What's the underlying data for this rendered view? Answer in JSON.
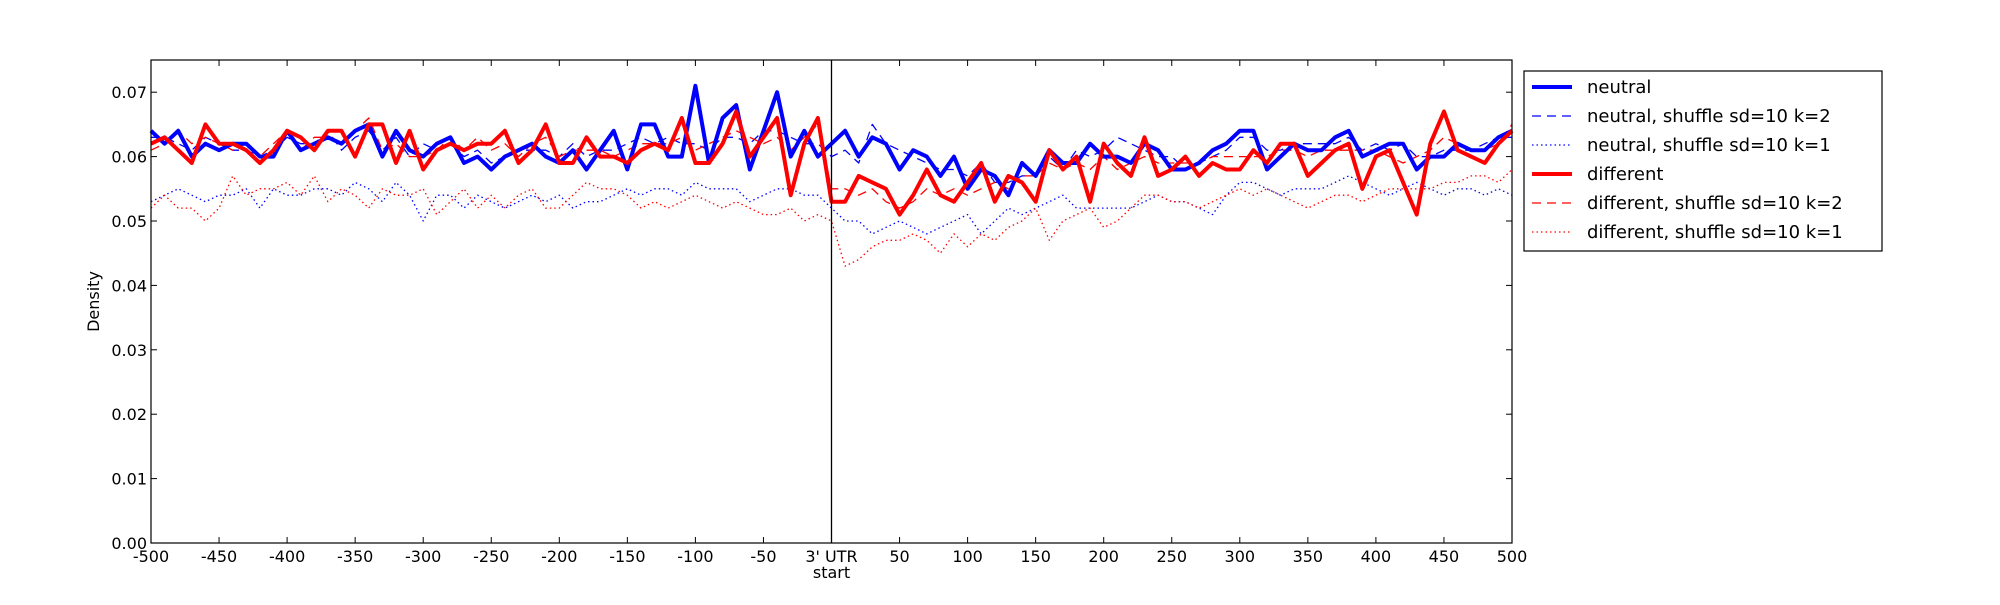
{
  "chart_data": {
    "type": "line",
    "title": "",
    "xlabel": "start",
    "ylabel": "Density",
    "xlim": [
      -500,
      500
    ],
    "ylim": [
      0.0,
      0.075
    ],
    "grid": false,
    "legend_placement": "outside-right-top",
    "x_ticks": [
      -500,
      -450,
      -400,
      -350,
      -300,
      -250,
      -200,
      -150,
      -100,
      -50,
      0,
      50,
      100,
      150,
      200,
      250,
      300,
      350,
      400,
      450,
      500
    ],
    "x_tick_labels": [
      "-500",
      "-450",
      "-400",
      "-350",
      "-300",
      "-250",
      "-200",
      "-150",
      "-100",
      "-50",
      "3' UTR",
      "50",
      "100",
      "150",
      "200",
      "250",
      "300",
      "350",
      "400",
      "450",
      "500"
    ],
    "y_ticks": [
      0.0,
      0.01,
      0.02,
      0.03,
      0.04,
      0.05,
      0.06,
      0.07
    ],
    "y_tick_labels": [
      "0.00",
      "0.01",
      "0.02",
      "0.03",
      "0.04",
      "0.05",
      "0.06",
      "0.07"
    ],
    "vertical_line_x": 0,
    "x": [
      -500,
      -490,
      -480,
      -470,
      -460,
      -450,
      -440,
      -430,
      -420,
      -410,
      -400,
      -390,
      -380,
      -370,
      -360,
      -350,
      -340,
      -330,
      -320,
      -310,
      -300,
      -290,
      -280,
      -270,
      -260,
      -250,
      -240,
      -230,
      -220,
      -210,
      -200,
      -190,
      -180,
      -170,
      -160,
      -150,
      -140,
      -130,
      -120,
      -110,
      -100,
      -90,
      -80,
      -70,
      -60,
      -50,
      -40,
      -30,
      -20,
      -10,
      0,
      10,
      20,
      30,
      40,
      50,
      60,
      70,
      80,
      90,
      100,
      110,
      120,
      130,
      140,
      150,
      160,
      170,
      180,
      190,
      200,
      210,
      220,
      230,
      240,
      250,
      260,
      270,
      280,
      290,
      300,
      310,
      320,
      330,
      340,
      350,
      360,
      370,
      380,
      390,
      400,
      410,
      420,
      430,
      440,
      450,
      460,
      470,
      480,
      490,
      500
    ],
    "series": [
      {
        "name": "neutral",
        "color": "#0000ff",
        "style": "solid",
        "values": [
          0.064,
          0.062,
          0.064,
          0.06,
          0.062,
          0.061,
          0.062,
          0.062,
          0.06,
          0.06,
          0.064,
          0.061,
          0.062,
          0.063,
          0.062,
          0.064,
          0.065,
          0.06,
          0.064,
          0.061,
          0.06,
          0.062,
          0.063,
          0.059,
          0.06,
          0.058,
          0.06,
          0.061,
          0.062,
          0.06,
          0.059,
          0.061,
          0.058,
          0.061,
          0.064,
          0.058,
          0.065,
          0.065,
          0.06,
          0.06,
          0.071,
          0.059,
          0.066,
          0.068,
          0.058,
          0.064,
          0.07,
          0.06,
          0.064,
          0.06,
          0.062,
          0.064,
          0.06,
          0.063,
          0.062,
          0.058,
          0.061,
          0.06,
          0.057,
          0.06,
          0.055,
          0.058,
          0.057,
          0.054,
          0.059,
          0.057,
          0.061,
          0.059,
          0.059,
          0.062,
          0.06,
          0.06,
          0.059,
          0.062,
          0.061,
          0.058,
          0.058,
          0.059,
          0.061,
          0.062,
          0.064,
          0.064,
          0.058,
          0.06,
          0.062,
          0.061,
          0.061,
          0.063,
          0.064,
          0.06,
          0.061,
          0.062,
          0.062,
          0.058,
          0.06,
          0.06,
          0.062,
          0.061,
          0.061,
          0.063,
          0.064
        ]
      },
      {
        "name": "neutral, shuffle sd=10 k=2",
        "color": "#0000ff",
        "style": "dashed",
        "values": [
          0.063,
          0.063,
          0.062,
          0.061,
          0.063,
          0.062,
          0.061,
          0.061,
          0.06,
          0.061,
          0.063,
          0.062,
          0.062,
          0.064,
          0.061,
          0.063,
          0.064,
          0.061,
          0.063,
          0.06,
          0.062,
          0.061,
          0.062,
          0.06,
          0.061,
          0.059,
          0.06,
          0.061,
          0.061,
          0.061,
          0.06,
          0.062,
          0.06,
          0.061,
          0.061,
          0.062,
          0.063,
          0.062,
          0.063,
          0.062,
          0.062,
          0.061,
          0.063,
          0.063,
          0.062,
          0.064,
          0.064,
          0.063,
          0.062,
          0.062,
          0.06,
          0.061,
          0.059,
          0.065,
          0.062,
          0.061,
          0.06,
          0.059,
          0.058,
          0.058,
          0.057,
          0.059,
          0.056,
          0.056,
          0.057,
          0.057,
          0.06,
          0.058,
          0.061,
          0.06,
          0.061,
          0.063,
          0.062,
          0.061,
          0.06,
          0.06,
          0.058,
          0.059,
          0.06,
          0.061,
          0.063,
          0.063,
          0.061,
          0.061,
          0.062,
          0.062,
          0.062,
          0.062,
          0.063,
          0.061,
          0.062,
          0.061,
          0.062,
          0.06,
          0.06,
          0.061,
          0.061,
          0.061,
          0.062,
          0.063,
          0.063
        ]
      },
      {
        "name": "neutral, shuffle sd=10 k=1",
        "color": "#0000ff",
        "style": "dotted",
        "values": [
          0.053,
          0.054,
          0.055,
          0.054,
          0.053,
          0.054,
          0.054,
          0.055,
          0.052,
          0.055,
          0.054,
          0.054,
          0.055,
          0.055,
          0.054,
          0.056,
          0.055,
          0.053,
          0.056,
          0.054,
          0.05,
          0.054,
          0.054,
          0.052,
          0.054,
          0.053,
          0.052,
          0.053,
          0.054,
          0.053,
          0.054,
          0.052,
          0.053,
          0.053,
          0.054,
          0.055,
          0.054,
          0.055,
          0.055,
          0.054,
          0.056,
          0.055,
          0.055,
          0.055,
          0.053,
          0.054,
          0.055,
          0.055,
          0.054,
          0.054,
          0.052,
          0.05,
          0.05,
          0.048,
          0.049,
          0.05,
          0.049,
          0.048,
          0.049,
          0.05,
          0.051,
          0.048,
          0.05,
          0.052,
          0.051,
          0.052,
          0.053,
          0.054,
          0.052,
          0.052,
          0.052,
          0.052,
          0.052,
          0.053,
          0.054,
          0.053,
          0.053,
          0.052,
          0.051,
          0.054,
          0.056,
          0.056,
          0.055,
          0.054,
          0.055,
          0.055,
          0.055,
          0.056,
          0.057,
          0.056,
          0.055,
          0.054,
          0.055,
          0.056,
          0.055,
          0.054,
          0.055,
          0.055,
          0.054,
          0.055,
          0.054
        ]
      },
      {
        "name": "different",
        "color": "#ff0000",
        "style": "solid",
        "values": [
          0.062,
          0.063,
          0.061,
          0.059,
          0.065,
          0.062,
          0.062,
          0.061,
          0.059,
          0.061,
          0.064,
          0.063,
          0.061,
          0.064,
          0.064,
          0.06,
          0.065,
          0.065,
          0.059,
          0.064,
          0.058,
          0.061,
          0.062,
          0.061,
          0.062,
          0.062,
          0.064,
          0.059,
          0.061,
          0.065,
          0.059,
          0.059,
          0.063,
          0.06,
          0.06,
          0.059,
          0.061,
          0.062,
          0.061,
          0.066,
          0.059,
          0.059,
          0.062,
          0.067,
          0.06,
          0.063,
          0.066,
          0.054,
          0.062,
          0.066,
          0.053,
          0.053,
          0.057,
          0.056,
          0.055,
          0.051,
          0.054,
          0.058,
          0.054,
          0.053,
          0.056,
          0.059,
          0.053,
          0.057,
          0.056,
          0.053,
          0.061,
          0.058,
          0.06,
          0.053,
          0.062,
          0.059,
          0.057,
          0.063,
          0.057,
          0.058,
          0.06,
          0.057,
          0.059,
          0.058,
          0.058,
          0.061,
          0.059,
          0.062,
          0.062,
          0.057,
          0.059,
          0.061,
          0.062,
          0.055,
          0.06,
          0.061,
          0.056,
          0.051,
          0.062,
          0.067,
          0.061,
          0.06,
          0.059,
          0.062,
          0.064
        ]
      },
      {
        "name": "different, shuffle sd=10 k=2",
        "color": "#ff0000",
        "style": "dashed",
        "values": [
          0.061,
          0.062,
          0.064,
          0.062,
          0.063,
          0.062,
          0.061,
          0.062,
          0.06,
          0.062,
          0.064,
          0.061,
          0.063,
          0.063,
          0.062,
          0.064,
          0.066,
          0.061,
          0.062,
          0.06,
          0.06,
          0.061,
          0.063,
          0.061,
          0.063,
          0.061,
          0.062,
          0.06,
          0.062,
          0.063,
          0.06,
          0.061,
          0.061,
          0.061,
          0.06,
          0.061,
          0.062,
          0.062,
          0.062,
          0.063,
          0.061,
          0.062,
          0.063,
          0.064,
          0.063,
          0.062,
          0.063,
          0.061,
          0.063,
          0.065,
          0.055,
          0.055,
          0.054,
          0.055,
          0.053,
          0.052,
          0.053,
          0.055,
          0.054,
          0.055,
          0.054,
          0.055,
          0.056,
          0.055,
          0.057,
          0.057,
          0.059,
          0.058,
          0.059,
          0.058,
          0.06,
          0.058,
          0.059,
          0.06,
          0.059,
          0.059,
          0.059,
          0.059,
          0.06,
          0.06,
          0.06,
          0.06,
          0.06,
          0.061,
          0.061,
          0.06,
          0.061,
          0.061,
          0.061,
          0.061,
          0.061,
          0.06,
          0.059,
          0.06,
          0.061,
          0.063,
          0.062,
          0.061,
          0.061,
          0.062,
          0.065
        ]
      },
      {
        "name": "different, shuffle sd=10 k=1",
        "color": "#ff0000",
        "style": "dotted",
        "values": [
          0.052,
          0.054,
          0.052,
          0.052,
          0.05,
          0.052,
          0.057,
          0.054,
          0.055,
          0.055,
          0.056,
          0.054,
          0.057,
          0.053,
          0.055,
          0.054,
          0.052,
          0.055,
          0.054,
          0.054,
          0.055,
          0.051,
          0.053,
          0.055,
          0.052,
          0.054,
          0.052,
          0.054,
          0.055,
          0.052,
          0.052,
          0.054,
          0.056,
          0.055,
          0.055,
          0.054,
          0.052,
          0.053,
          0.052,
          0.053,
          0.054,
          0.053,
          0.052,
          0.053,
          0.052,
          0.051,
          0.051,
          0.052,
          0.05,
          0.051,
          0.05,
          0.043,
          0.044,
          0.046,
          0.047,
          0.047,
          0.048,
          0.047,
          0.045,
          0.048,
          0.046,
          0.048,
          0.047,
          0.049,
          0.05,
          0.052,
          0.047,
          0.05,
          0.051,
          0.052,
          0.049,
          0.05,
          0.052,
          0.054,
          0.054,
          0.053,
          0.053,
          0.052,
          0.053,
          0.054,
          0.055,
          0.054,
          0.055,
          0.054,
          0.053,
          0.052,
          0.053,
          0.054,
          0.054,
          0.053,
          0.054,
          0.055,
          0.055,
          0.055,
          0.055,
          0.056,
          0.056,
          0.057,
          0.057,
          0.056,
          0.058
        ]
      }
    ]
  }
}
